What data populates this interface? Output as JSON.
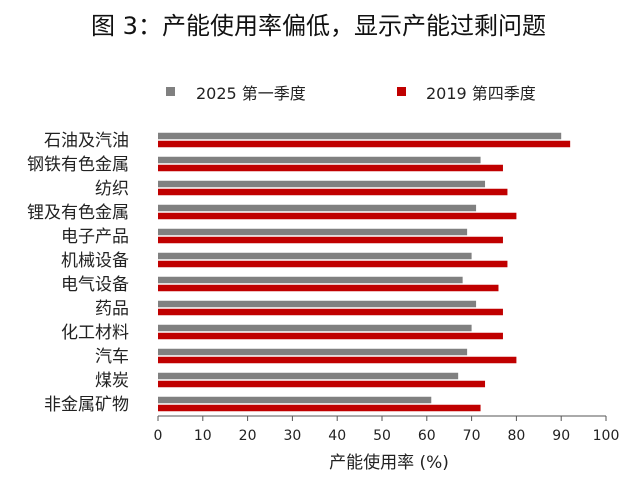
{
  "title": "图 3：产能使用率偏低，显示产能过剩问题",
  "chart_data": {
    "type": "bar",
    "orientation": "horizontal",
    "categories": [
      "石油及汽油",
      "钢铁有色金属",
      "纺织",
      "锂及有色金属",
      "电子产品",
      "机械设备",
      "电气设备",
      "药品",
      "化工材料",
      "汽车",
      "煤炭",
      "非金属矿物"
    ],
    "series": [
      {
        "name": "2025 第一季度",
        "color": "#808080",
        "values": [
          90,
          72,
          73,
          71,
          69,
          70,
          68,
          71,
          70,
          69,
          67,
          61
        ]
      },
      {
        "name": "2019 第四季度",
        "color": "#c00000",
        "values": [
          92,
          77,
          78,
          80,
          77,
          78,
          76,
          77,
          77,
          80,
          73,
          72
        ]
      }
    ],
    "xlabel": "产能使用率 (%)",
    "ylabel": "",
    "xlim": [
      0,
      100
    ],
    "xticks": [
      0,
      10,
      20,
      30,
      40,
      50,
      60,
      70,
      80,
      90,
      100
    ],
    "grid": false,
    "legend_position": "top"
  }
}
